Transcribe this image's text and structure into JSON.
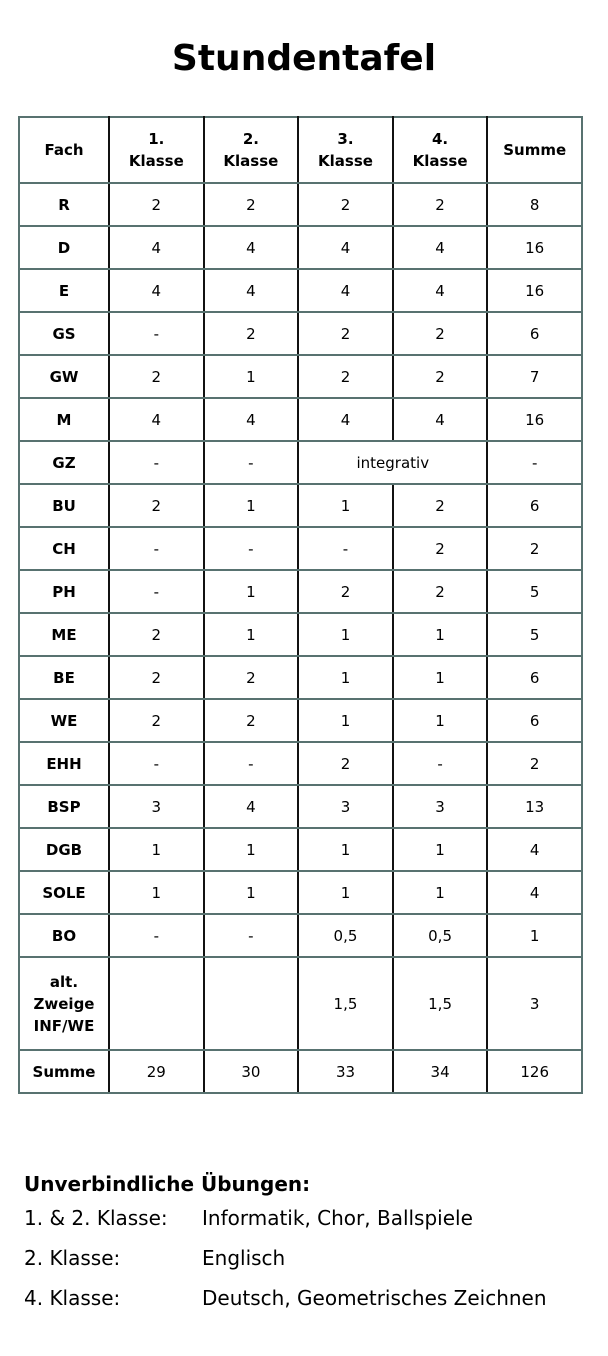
{
  "title": "Stundentafel",
  "headers": [
    "Fach",
    "1.\nKlasse",
    "2.\nKlasse",
    "3.\nKlasse",
    "4.\nKlasse",
    "Summe"
  ],
  "rows": [
    [
      "R",
      "2",
      "2",
      "2",
      "2",
      "8"
    ],
    [
      "D",
      "4",
      "4",
      "4",
      "4",
      "16"
    ],
    [
      "E",
      "4",
      "4",
      "4",
      "4",
      "16"
    ],
    [
      "GS",
      "-",
      "2",
      "2",
      "2",
      "6"
    ],
    [
      "GW",
      "2",
      "1",
      "2",
      "2",
      "7"
    ],
    [
      "M",
      "4",
      "4",
      "4",
      "4",
      "16"
    ],
    [
      "GZ",
      "-",
      "-",
      "integrativ",
      "-"
    ],
    [
      "BU",
      "2",
      "1",
      "1",
      "2",
      "6"
    ],
    [
      "CH",
      "-",
      "-",
      "-",
      "2",
      "2"
    ],
    [
      "PH",
      "-",
      "1",
      "2",
      "2",
      "5"
    ],
    [
      "ME",
      "2",
      "1",
      "1",
      "1",
      "5"
    ],
    [
      "BE",
      "2",
      "2",
      "1",
      "1",
      "6"
    ],
    [
      "WE",
      "2",
      "2",
      "1",
      "1",
      "6"
    ],
    [
      "EHH",
      "-",
      "-",
      "2",
      "-",
      "2"
    ],
    [
      "BSP",
      "3",
      "4",
      "3",
      "3",
      "13"
    ],
    [
      "DGB",
      "1",
      "1",
      "1",
      "1",
      "4"
    ],
    [
      "SOLE",
      "1",
      "1",
      "1",
      "1",
      "4"
    ],
    [
      "BO",
      "-",
      "-",
      "0,5",
      "0,5",
      "1"
    ],
    [
      "alt.\nZweige\nINF/WE",
      "",
      "",
      "1,5",
      "1,5",
      "3"
    ],
    [
      "Summe",
      "29",
      "30",
      "33",
      "34",
      "126"
    ]
  ],
  "notes": {
    "heading": "Unverbindliche Übungen:",
    "items": [
      {
        "label": "1. & 2. Klasse:",
        "value": "Informatik, Chor, Ballspiele"
      },
      {
        "label": "2. Klasse:",
        "value": "Englisch"
      },
      {
        "label": "4. Klasse:",
        "value": "Deutsch, Geometrisches Zeichnen"
      }
    ]
  }
}
